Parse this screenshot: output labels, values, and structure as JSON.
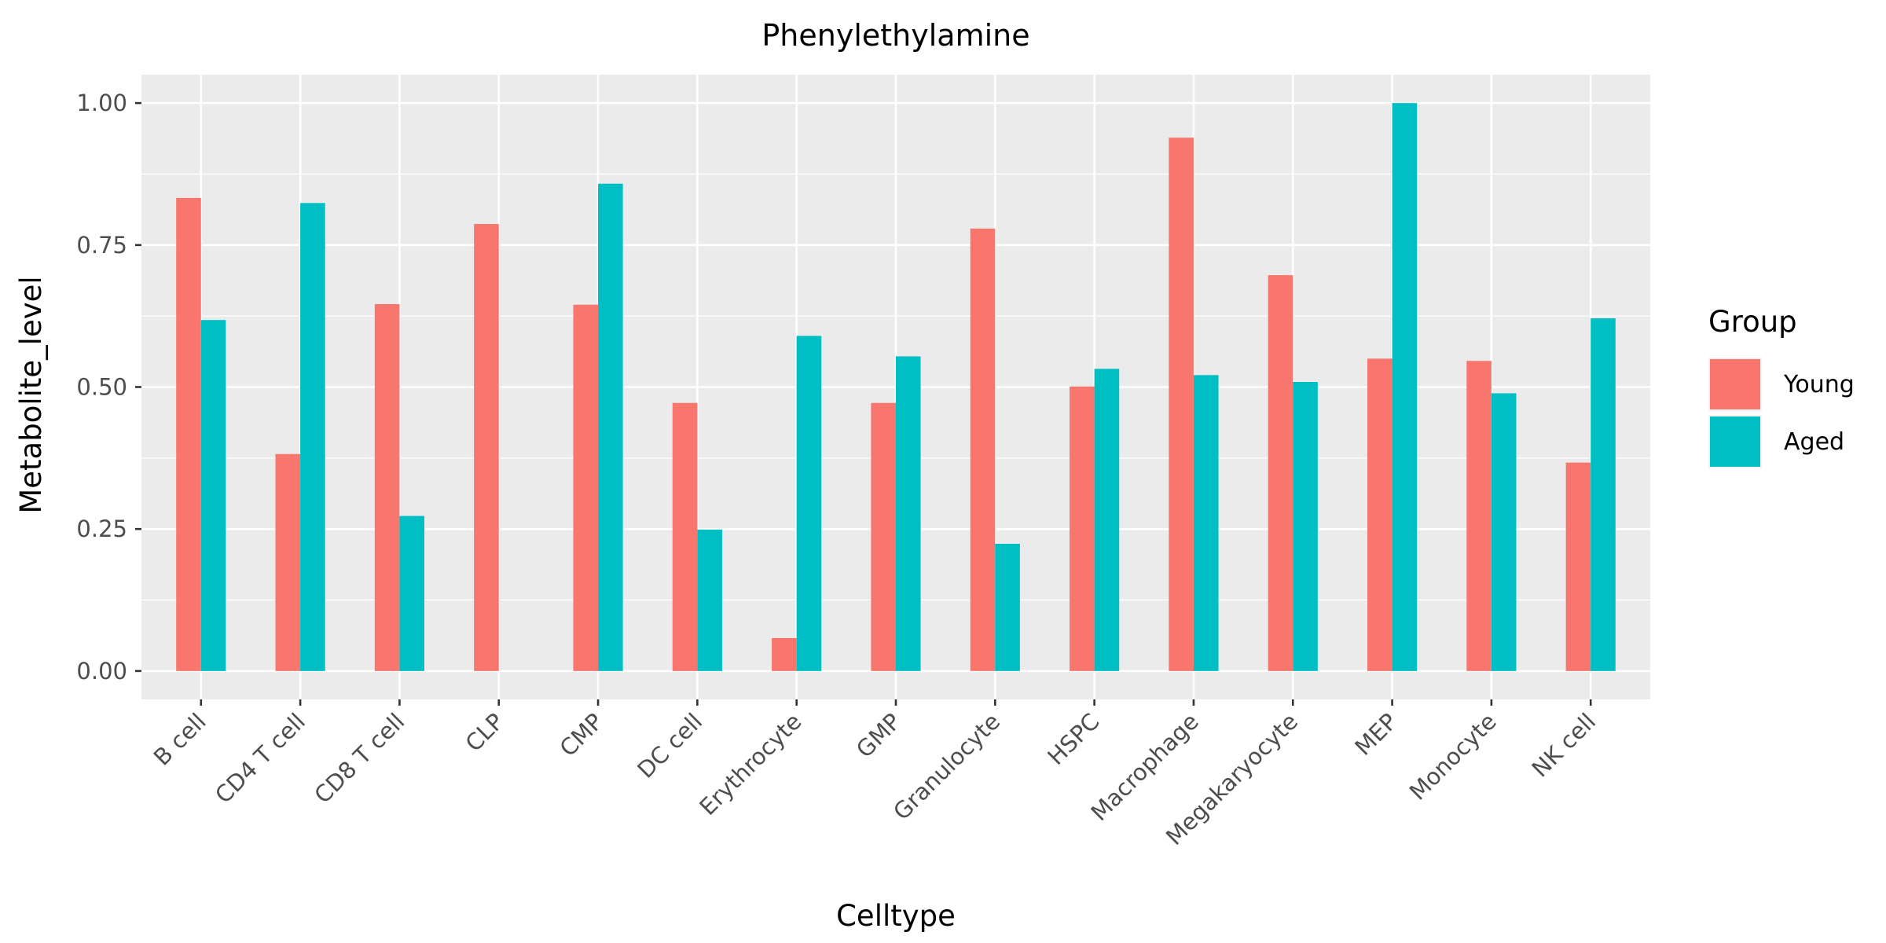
{
  "chart_data": {
    "type": "bar",
    "title": "Phenylethylamine",
    "xlabel": "Celltype",
    "ylabel": "Metabolite_level",
    "ylim": [
      -0.05,
      1.05
    ],
    "yticks": [
      0.0,
      0.25,
      0.5,
      0.75,
      1.0
    ],
    "ytick_labels": [
      "0.00",
      "0.25",
      "0.50",
      "0.75",
      "1.00"
    ],
    "categories": [
      "B cell",
      "CD4 T cell",
      "CD8 T cell",
      "CLP",
      "CMP",
      "DC cell",
      "Erythrocyte",
      "GMP",
      "Granulocyte",
      "HSPC",
      "Macrophage",
      "Megakaryocyte",
      "MEP",
      "Monocyte",
      "NK cell"
    ],
    "series": [
      {
        "name": "Young",
        "color": "#F8766D",
        "values": [
          0.833,
          0.382,
          0.646,
          0.787,
          0.645,
          0.472,
          0.058,
          0.472,
          0.779,
          0.501,
          0.939,
          0.697,
          0.55,
          0.546,
          0.367
        ]
      },
      {
        "name": "Aged",
        "color": "#00BFC4",
        "values": [
          0.618,
          0.824,
          0.273,
          null,
          0.858,
          0.249,
          0.59,
          0.554,
          0.224,
          0.532,
          0.521,
          0.509,
          1.0,
          0.489,
          0.621
        ]
      }
    ],
    "legend": {
      "title": "Group",
      "position": "right"
    },
    "grid": true,
    "panel_background": "#EBEBEB",
    "grid_color": "#FFFFFF"
  }
}
